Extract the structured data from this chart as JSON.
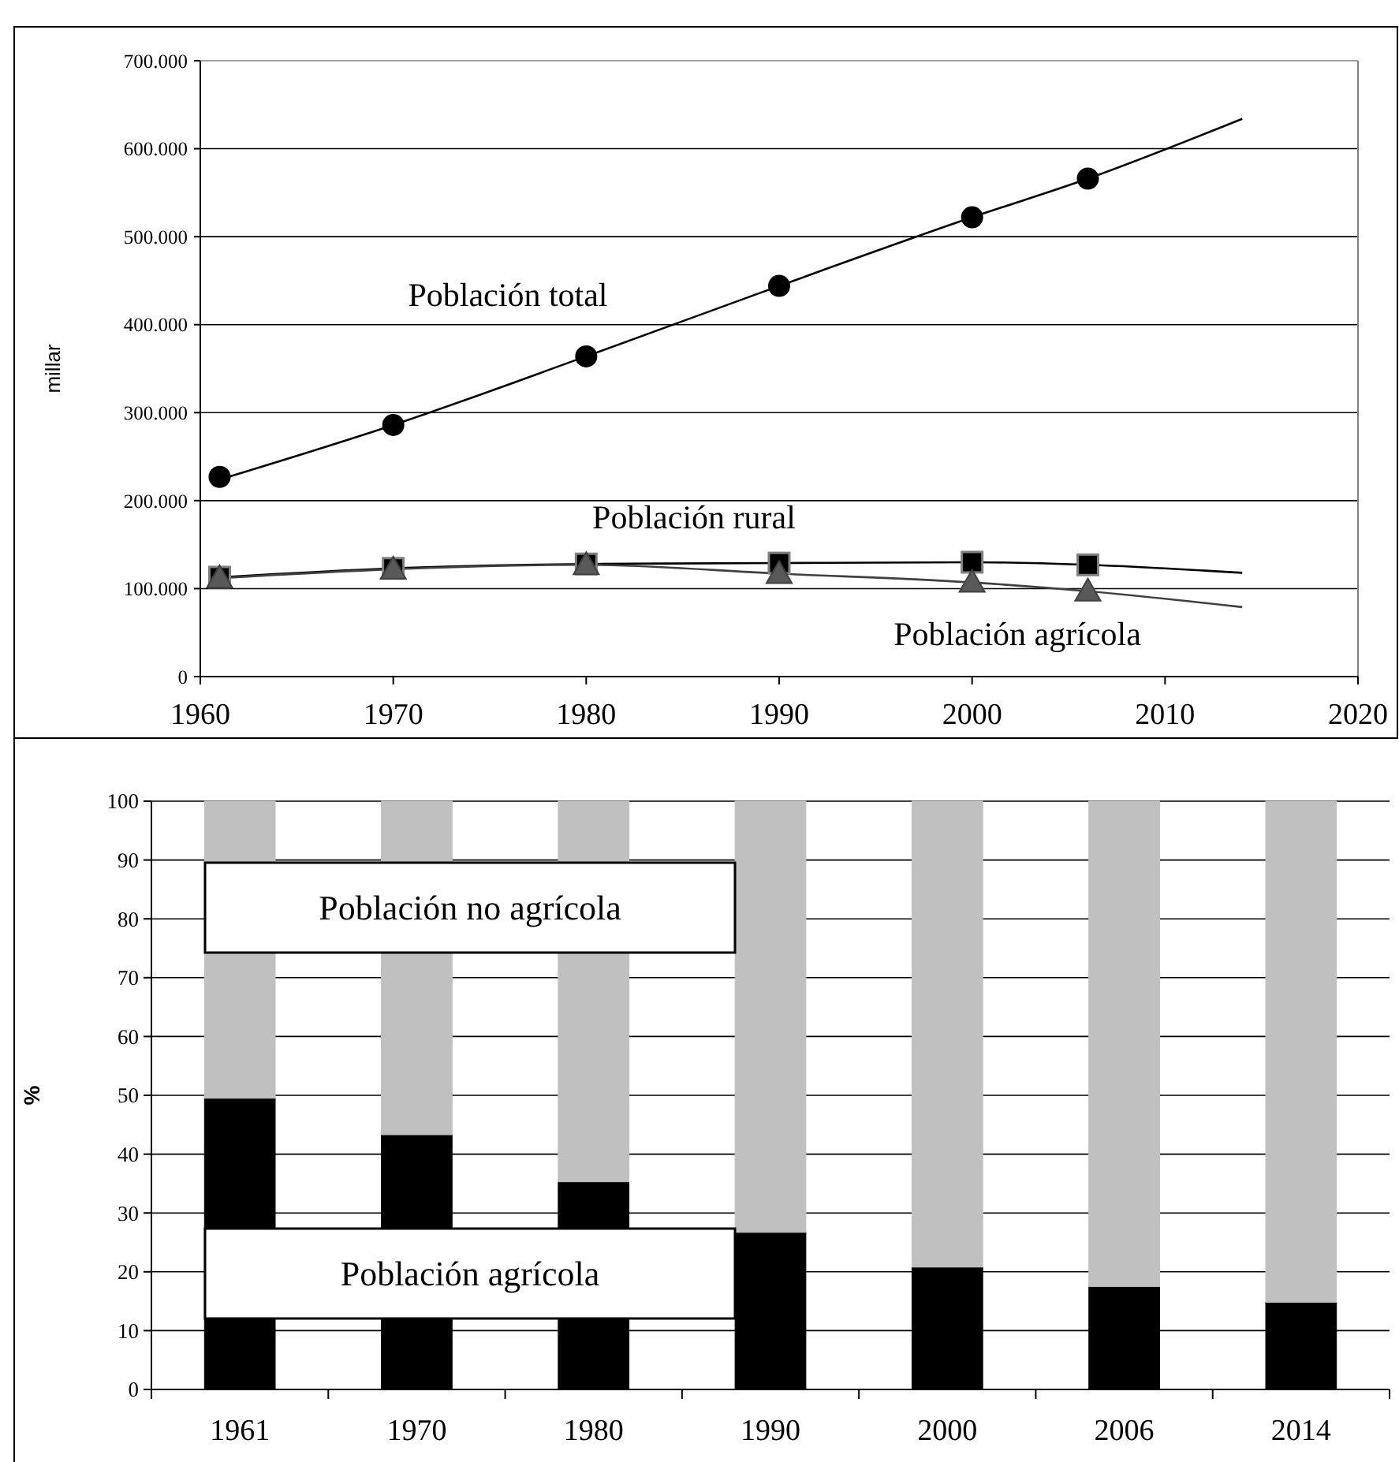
{
  "chart_data": [
    {
      "type": "scatter",
      "xlabel": null,
      "ylabel": "millar",
      "xlim": [
        1960,
        2020
      ],
      "xticks": [
        1960,
        1970,
        1980,
        1990,
        2000,
        2010,
        2020
      ],
      "ylim": [
        0,
        700000
      ],
      "yticks": [
        {
          "value": 0,
          "label": "0"
        },
        {
          "value": 100000,
          "label": "100.000"
        },
        {
          "value": 200000,
          "label": "200.000"
        },
        {
          "value": 300000,
          "label": "300.000"
        },
        {
          "value": 400000,
          "label": "400.000"
        },
        {
          "value": 500000,
          "label": "500.000"
        },
        {
          "value": 600000,
          "label": "600.000"
        },
        {
          "value": 700000,
          "label": "700.000"
        }
      ],
      "grid": "y",
      "series": [
        {
          "type": "line",
          "color": "#000000",
          "marker": "none",
          "x": [
            1961,
            1970,
            1980,
            1990,
            2000,
            2006,
            2014
          ],
          "values": [
            224000,
            286000,
            364000,
            444000,
            522000,
            566000,
            634000
          ]
        },
        {
          "type": "line",
          "color": "#000000",
          "marker": "none",
          "x": [
            1961,
            1970,
            1980,
            1990,
            2000,
            2006,
            2014
          ],
          "values": [
            113000,
            123000,
            128000,
            129000,
            130000,
            127000,
            118000
          ]
        },
        {
          "type": "line",
          "color": "#404040",
          "marker": "none",
          "x": [
            1961,
            1970,
            1980,
            1990,
            2000,
            2006,
            2014
          ],
          "values": [
            112000,
            122000,
            127000,
            117000,
            107000,
            97000,
            79000
          ]
        },
        {
          "name": "Población total",
          "color": "#000000",
          "marker": "circle",
          "x": [
            1961,
            1970,
            1980,
            1990,
            2000,
            2006
          ],
          "values": [
            227000,
            286000,
            364000,
            444000,
            522000,
            566000
          ]
        },
        {
          "name": "Población rural",
          "color": "#000000",
          "marker": "square",
          "x": [
            1961,
            1970,
            1980,
            1990,
            2000,
            2006
          ],
          "values": [
            113000,
            123000,
            128000,
            129000,
            130000,
            127000
          ]
        },
        {
          "name": "Población agrícola",
          "color": "#595959",
          "marker": "triangle",
          "x": [
            1961,
            1970,
            1980,
            1990,
            2000,
            2006
          ],
          "values": [
            112000,
            122000,
            127000,
            117000,
            107000,
            97000
          ]
        }
      ]
    },
    {
      "type": "bar",
      "stacked": true,
      "ylabel": "%",
      "categories": [
        "1961",
        "1970",
        "1980",
        "1990",
        "2000",
        "2006",
        "2014"
      ],
      "ylim": [
        0,
        100
      ],
      "yticks": [
        0,
        10,
        20,
        30,
        40,
        50,
        60,
        70,
        80,
        90,
        100
      ],
      "grid": "y",
      "series": [
        {
          "name": "Población agrícola",
          "color": "#000000",
          "values": [
            49.5,
            43.3,
            35.3,
            26.7,
            20.8,
            17.5,
            14.8
          ]
        },
        {
          "name": "Población no agrícola",
          "color": "#c0c0c0",
          "values": [
            50.5,
            56.7,
            64.7,
            73.3,
            79.2,
            82.5,
            85.2
          ]
        }
      ]
    }
  ]
}
